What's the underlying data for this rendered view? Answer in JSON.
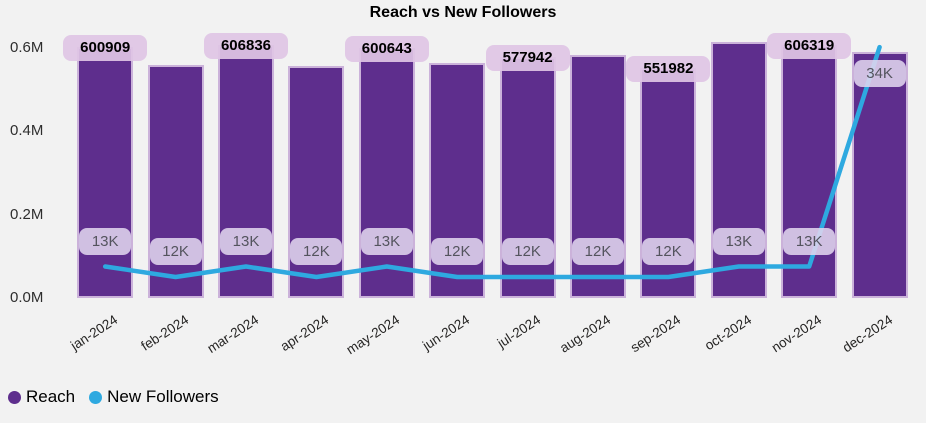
{
  "title": "Reach vs New Followers",
  "colors": {
    "background": "#f2f2f2",
    "bar_fill": "#5e2e8d",
    "bar_border": "#cbb2da",
    "line": "#2ea9e0",
    "bar_label_bg": "#dfc6e5",
    "line_label_bg": "#e0d5ee",
    "line_label_text": "#54545e",
    "axis_text": "#2e2e2e"
  },
  "y_axis": {
    "ticks": [
      "0.6M",
      "0.4M",
      "0.2M",
      "0.0M"
    ]
  },
  "legend": [
    {
      "label": "Reach",
      "color": "#5e2e8d",
      "marker": "circle"
    },
    {
      "label": "New Followers",
      "color": "#2ea9e0",
      "marker": "circle"
    }
  ],
  "chart_data": {
    "type": "bar",
    "subtype": "bar+line combo",
    "title": "Reach vs New Followers",
    "xlabel": "",
    "ylabel": "",
    "categories": [
      "jan-2024",
      "feb-2024",
      "mar-2024",
      "apr-2024",
      "may-2024",
      "jun-2024",
      "jul-2024",
      "aug-2024",
      "sep-2024",
      "oct-2024",
      "nov-2024",
      "dec-2024"
    ],
    "series": [
      {
        "name": "Reach",
        "type": "bar",
        "values": [
          600909,
          558000,
          606836,
          557000,
          600643,
          564000,
          577942,
          583000,
          551982,
          614000,
          606319,
          590000
        ],
        "data_labels": [
          "600909",
          null,
          "606836",
          null,
          "600643",
          null,
          "577942",
          null,
          "551982",
          null,
          "606319",
          null
        ],
        "estimated_indices": [
          1,
          3,
          5,
          7,
          9,
          11
        ]
      },
      {
        "name": "New Followers",
        "type": "line",
        "values": [
          13000,
          12000,
          13000,
          12000,
          13000,
          12000,
          12000,
          12000,
          12000,
          13000,
          13000,
          34000
        ],
        "data_labels": [
          "13K",
          "12K",
          "13K",
          "12K",
          "13K",
          "12K",
          "12K",
          "12K",
          "12K",
          "13K",
          "13K",
          "34K"
        ]
      }
    ],
    "ylim": [
      0,
      650000
    ],
    "y_tick_labels": [
      "0.0M",
      "0.2M",
      "0.4M",
      "0.6M"
    ],
    "grid": false,
    "legend_position": "bottom-left"
  }
}
